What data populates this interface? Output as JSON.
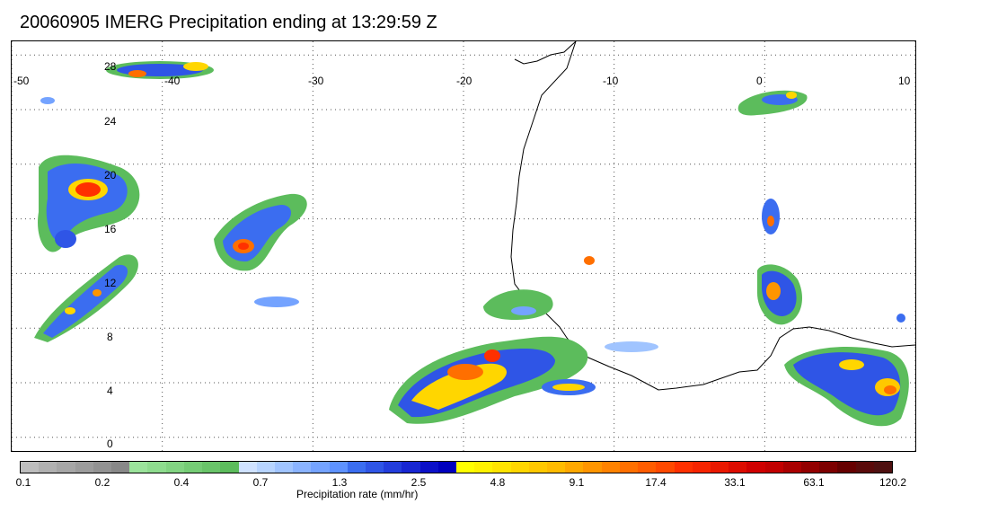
{
  "title": "20060905 IMERG Precipitation ending at 13:29:59 Z",
  "map": {
    "lon_labels": [
      "-50",
      "-40",
      "-30",
      "-20",
      "-10",
      "0",
      "10"
    ],
    "lat_labels": [
      "28",
      "24",
      "20",
      "16",
      "12",
      "8",
      "4",
      "0"
    ],
    "lon_range": [
      -50,
      10
    ],
    "lat_range": [
      -1,
      29
    ],
    "gridlines": "dotted",
    "background": "#ffffff"
  },
  "colorbar": {
    "title": "Precipitation rate (mm/hr)",
    "tick_labels": [
      "0.1",
      "0.2",
      "0.4",
      "0.7",
      "1.3",
      "2.5",
      "4.8",
      "9.1",
      "17.4",
      "33.1",
      "63.1",
      "120.2"
    ],
    "colors": [
      "#bdbdbd",
      "#b0b0b0",
      "#a6a6a6",
      "#9c9c9c",
      "#929292",
      "#888888",
      "#9be39b",
      "#8edc8e",
      "#82d482",
      "#75cc75",
      "#69c469",
      "#5cbc5c",
      "#cfe2ff",
      "#b7d4ff",
      "#a0c4ff",
      "#8ab3ff",
      "#74a3ff",
      "#5e92ff",
      "#3b6df0",
      "#2f55e6",
      "#233ddc",
      "#1726d2",
      "#0b10c8",
      "#0000be",
      "#ffff00",
      "#fff200",
      "#ffe400",
      "#ffd600",
      "#ffc800",
      "#ffbb00",
      "#ffa800",
      "#ff9500",
      "#ff8200",
      "#ff6f00",
      "#ff5c00",
      "#ff4900",
      "#ff3000",
      "#f72400",
      "#ea1800",
      "#dd0c00",
      "#d00000",
      "#c20000",
      "#aa0000",
      "#930000",
      "#7d0000",
      "#660000",
      "#5a0a0a",
      "#4e1010"
    ]
  }
}
